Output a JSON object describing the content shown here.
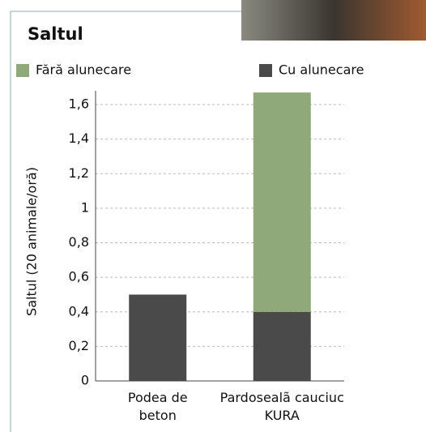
{
  "chart_data": {
    "type": "stacked_bar",
    "title": "Saltul",
    "y_label": "Saltul (20 animale/oră)",
    "categories": [
      "Podea de beton",
      "Pardosealã cauciuc KURA"
    ],
    "series": [
      {
        "name": "Cu alunecare",
        "color": "#4a4a4a",
        "values": [
          0.5,
          0.4
        ]
      },
      {
        "name": "Fără alunecare",
        "color": "#8fa97a",
        "values": [
          0,
          1.27
        ]
      }
    ],
    "ylim": [
      0,
      1.68
    ],
    "yticks": [
      0,
      {
        "value": 0.2,
        "label": "0,2"
      },
      {
        "value": 0.4,
        "label": "0,4"
      },
      {
        "value": 0.6,
        "label": "0,6"
      },
      {
        "value": 0.8,
        "label": "0,8"
      },
      1,
      {
        "value": 1.2,
        "label": "1,2"
      },
      {
        "value": 1.4,
        "label": "1,4"
      },
      {
        "value": 1.6,
        "label": "1,6"
      }
    ],
    "grid": true
  }
}
